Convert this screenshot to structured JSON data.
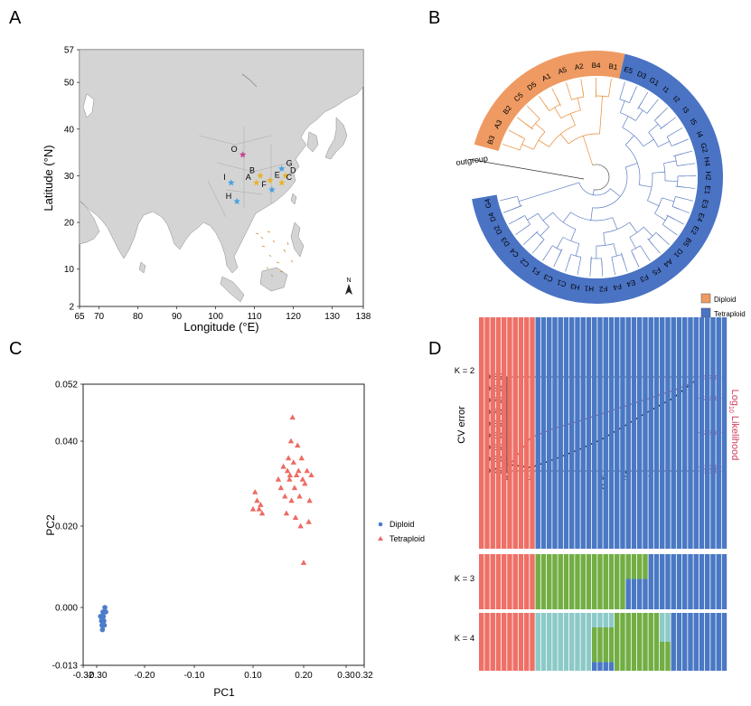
{
  "colors": {
    "diploid": "#ee9a62",
    "tetraploid": "#4a73c4",
    "pca_diploid": "#4a7cc9",
    "pca_tetraploid": "#ec6b63",
    "land": "#d4d4d4",
    "sea": "#ffffff",
    "cv_line": "#000000",
    "loglik_line": "#d0425e",
    "admix_red": "#ee7066",
    "admix_blue": "#4a78c4",
    "admix_green": "#72ae44",
    "admix_teal": "#8ccac8"
  },
  "panels": {
    "a": "A",
    "b": "B",
    "c": "C",
    "d": "D"
  },
  "map": {
    "xlabel": "Longitude (°E)",
    "ylabel": "Latitude (°N)",
    "x_ticks": [
      "65",
      "70",
      "80",
      "90",
      "100",
      "110",
      "120",
      "130",
      "138"
    ],
    "y_ticks": [
      "57",
      "50",
      "40",
      "30",
      "20",
      "10",
      "2"
    ],
    "north_label": "N",
    "sites": [
      {
        "label": "O",
        "lon": 107.0,
        "lat": 34.5,
        "color": "#c2478a"
      },
      {
        "label": "G",
        "lon": 117.0,
        "lat": 31.5,
        "color": "#48a3e0"
      },
      {
        "label": "B",
        "lon": 111.5,
        "lat": 30.0,
        "color": "#e8b32e"
      },
      {
        "label": "E",
        "lon": 114.0,
        "lat": 29.0,
        "color": "#e8b32e"
      },
      {
        "label": "D",
        "lon": 118.0,
        "lat": 30.0,
        "color": "#e8b32e"
      },
      {
        "label": "C",
        "lon": 117.0,
        "lat": 28.5,
        "color": "#e8b32e"
      },
      {
        "label": "A",
        "lon": 110.5,
        "lat": 28.5,
        "color": "#e8b32e"
      },
      {
        "label": "I",
        "lon": 104.0,
        "lat": 28.5,
        "color": "#48a3e0"
      },
      {
        "label": "F",
        "lon": 114.5,
        "lat": 27.0,
        "color": "#48a3e0"
      },
      {
        "label": "H",
        "lon": 105.5,
        "lat": 24.5,
        "color": "#48a3e0"
      }
    ]
  },
  "tree": {
    "outgroup_label": "outgroup",
    "legend": [
      "Diploid",
      "Tetraploid"
    ],
    "diploid_tips": [
      "B3",
      "A3",
      "B2",
      "C5",
      "D5",
      "A1",
      "A5",
      "A2",
      "B4",
      "B1"
    ],
    "tetraploid_tips": [
      "E5",
      "D3",
      "G1",
      "I1",
      "I2",
      "I3",
      "I5",
      "I4",
      "G2",
      "H4",
      "H2",
      "E1",
      "E3",
      "E4",
      "E2",
      "B5",
      "D1",
      "A4",
      "F5",
      "F3",
      "E4",
      "F4",
      "F2",
      "H1",
      "H3",
      "C1",
      "C3",
      "F1",
      "C2",
      "C4",
      "D3",
      "D2",
      "D4",
      "G4"
    ]
  },
  "chart_data": [
    {
      "type": "scatter",
      "xlabel": "PC1",
      "ylabel": "PC2",
      "xlim": [
        -0.32,
        0.32
      ],
      "ylim": [
        -0.013,
        0.052
      ],
      "x_ticks": [
        "-0.32",
        "-0.30",
        "-0.20",
        "-0.10",
        "0.10",
        "0.20",
        "0.30",
        "0.32"
      ],
      "x_tick_values": [
        -0.32,
        -0.3,
        -0.2,
        -0.1,
        0.1,
        0.2,
        0.3,
        0.32
      ],
      "y_ticks": [
        "0.052",
        "0.040",
        "0.020",
        "0.000",
        "-0.013"
      ],
      "y_tick_values": [
        0.052,
        0.04,
        0.02,
        0.0,
        -0.013
      ],
      "legend_position": "right",
      "series": [
        {
          "name": "Diploid",
          "marker": "circle",
          "points": [
            [
              -0.29,
              -0.003
            ],
            [
              -0.286,
              -0.002
            ],
            [
              -0.283,
              0.0
            ],
            [
              -0.289,
              -0.004
            ],
            [
              -0.285,
              -0.003
            ],
            [
              -0.281,
              -0.001
            ],
            [
              -0.292,
              -0.002
            ],
            [
              -0.287,
              -0.001
            ],
            [
              -0.284,
              -0.004
            ],
            [
              -0.288,
              -0.005
            ]
          ]
        },
        {
          "name": "Tetraploid",
          "marker": "triangle",
          "points": [
            [
              0.1,
              0.024
            ],
            [
              0.104,
              0.028
            ],
            [
              0.108,
              0.026
            ],
            [
              0.112,
              0.024
            ],
            [
              0.115,
              0.025
            ],
            [
              0.118,
              0.023
            ],
            [
              0.15,
              0.031
            ],
            [
              0.155,
              0.029
            ],
            [
              0.16,
              0.034
            ],
            [
              0.163,
              0.027
            ],
            [
              0.166,
              0.023
            ],
            [
              0.168,
              0.033
            ],
            [
              0.17,
              0.036
            ],
            [
              0.172,
              0.031
            ],
            [
              0.175,
              0.04
            ],
            [
              0.178,
              0.045
            ],
            [
              0.18,
              0.035
            ],
            [
              0.182,
              0.029
            ],
            [
              0.184,
              0.022
            ],
            [
              0.186,
              0.032
            ],
            [
              0.188,
              0.039
            ],
            [
              0.19,
              0.033
            ],
            [
              0.192,
              0.027
            ],
            [
              0.194,
              0.02
            ],
            [
              0.196,
              0.036
            ],
            [
              0.198,
              0.031
            ],
            [
              0.2,
              0.011
            ],
            [
              0.203,
              0.03
            ],
            [
              0.208,
              0.033
            ],
            [
              0.212,
              0.021
            ],
            [
              0.214,
              0.026
            ],
            [
              0.218,
              0.032
            ],
            [
              0.173,
              0.032
            ],
            [
              0.176,
              0.026
            ]
          ]
        }
      ]
    },
    {
      "type": "line",
      "xlabel": "K",
      "ylabel": "CV error",
      "y2label": "Log10 Likelihood",
      "y2label_main": "Log",
      "y2label_sub": "10",
      "y2label_rest": " Likelihood",
      "x": [
        1,
        2,
        3,
        4,
        5,
        6,
        7,
        8,
        9
      ],
      "xlim": [
        1,
        9
      ],
      "ylim": [
        0.45,
        0.85
      ],
      "y_ticks": [
        "0.85",
        "0.80",
        "0.75",
        "0.70",
        "0.65",
        "0.60",
        "0.55",
        "0.50",
        "0.45"
      ],
      "y2lim": [
        -30500000.0,
        -19500000.0
      ],
      "y2_ticks": [
        "-1.95E+7",
        "-2.20E+7",
        "-2.60E+7",
        "-3.00E+7",
        "-3.05E+7"
      ],
      "y2_tick_values": [
        -19500000.0,
        -22000000.0,
        -26000000.0,
        -30000000.0,
        -30500000.0
      ],
      "series": [
        {
          "name": "CV error",
          "axis": "left",
          "values": [
            0.478,
            0.465,
            0.5,
            0.54,
            0.585,
            0.645,
            0.705,
            0.76,
            0.84
          ]
        },
        {
          "name": "Log10 Likelihood",
          "axis": "right",
          "values": [
            -30200000.0,
            -26600000.0,
            -25500000.0,
            -24700000.0,
            -23800000.0,
            -22900000.0,
            -22000000.0,
            -21100000.0,
            -20000000.0
          ]
        }
      ]
    },
    {
      "type": "bar",
      "stacked": true,
      "rows": [
        {
          "label": "K = 2",
          "n": 44,
          "pattern": [
            {
              "count": 10,
              "mix": [
                1,
                0,
                0,
                0
              ]
            },
            {
              "count": 34,
              "mix": [
                0,
                1,
                0,
                0
              ]
            }
          ]
        },
        {
          "label": "K = 3",
          "n": 44,
          "pattern": [
            {
              "count": 10,
              "mix": [
                1,
                0,
                0,
                0
              ]
            },
            {
              "count": 16,
              "mix": [
                0,
                0,
                1,
                0
              ]
            },
            {
              "count": 4,
              "mix": [
                0,
                0.55,
                0.45,
                0
              ]
            },
            {
              "count": 14,
              "mix": [
                0,
                1,
                0,
                0
              ]
            }
          ]
        },
        {
          "label": "K = 4",
          "n": 44,
          "pattern": [
            {
              "count": 10,
              "mix": [
                1,
                0,
                0,
                0
              ]
            },
            {
              "count": 10,
              "mix": [
                0,
                0,
                0,
                1
              ]
            },
            {
              "count": 4,
              "mix": [
                0,
                0.15,
                0.6,
                0.25
              ]
            },
            {
              "count": 8,
              "mix": [
                0,
                0,
                1,
                0
              ]
            },
            {
              "count": 2,
              "mix": [
                0,
                0,
                0.5,
                0.5
              ]
            },
            {
              "count": 10,
              "mix": [
                0,
                1,
                0,
                0
              ]
            }
          ]
        }
      ]
    }
  ]
}
